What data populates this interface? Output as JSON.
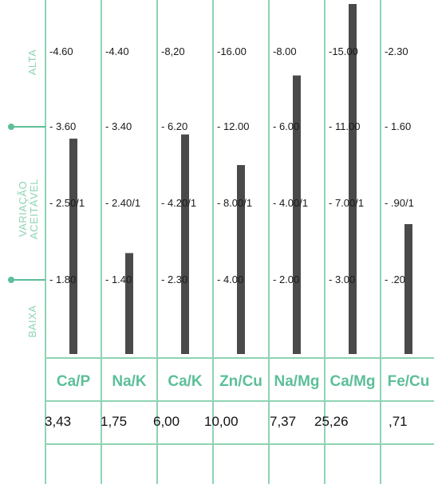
{
  "chart_data": {
    "type": "bar",
    "categories": [
      "Ca/P",
      "Na/K",
      "Ca/K",
      "Zn/Cu",
      "Na/Mg",
      "Ca/Mg",
      "Fe/Cu"
    ],
    "values": [
      3.43,
      1.75,
      6.0,
      10.0,
      7.37,
      25.26,
      0.71
    ],
    "value_labels": [
      "3,43",
      "1,75",
      "6,00",
      "10,00",
      "7,37",
      "25,26",
      ",71"
    ],
    "zones": {
      "high": "ALTA",
      "acceptable_line1": "VARIAÇÃO",
      "acceptable_line2": "ACEITÁVEL",
      "low": "BAIXA"
    },
    "scale_labels": [
      {
        "alta": "-4.60",
        "upper": "- 3.60",
        "ideal": "- 2.50/1",
        "lower": "- 1.80"
      },
      {
        "alta": "-4.40",
        "upper": "- 3.40",
        "ideal": "- 2.40/1",
        "lower": "- 1.40"
      },
      {
        "alta": "-8,20",
        "upper": "- 6.20",
        "ideal": "- 4.20/1",
        "lower": "- 2.30"
      },
      {
        "alta": "-16.00",
        "upper": "- 12.00",
        "ideal": "- 8.00/1",
        "lower": "- 4.00"
      },
      {
        "alta": "-8.00",
        "upper": "- 6.00",
        "ideal": "- 4.00/1",
        "lower": "- 2.00"
      },
      {
        "alta": "-15.00",
        "upper": "- 11.00",
        "ideal": "- 7.00/1",
        "lower": "- 3.00"
      },
      {
        "alta": "-2.30",
        "upper": "- 1.60",
        "ideal": "- .90/1",
        "lower": "- .20"
      }
    ],
    "scale_points": {
      "alta": [
        4.6,
        4.4,
        8.2,
        16.0,
        8.0,
        15.0,
        2.3
      ],
      "upper": [
        3.6,
        3.4,
        6.2,
        12.0,
        6.0,
        11.0,
        1.6
      ],
      "ideal": [
        2.5,
        2.4,
        4.2,
        8.0,
        4.0,
        7.0,
        0.9
      ],
      "lower": [
        1.8,
        1.4,
        2.3,
        4.0,
        2.0,
        3.0,
        0.2
      ]
    },
    "colors": {
      "grid": "#8fd3b3",
      "header": "#5cbf98",
      "bar": "#4a4a4a"
    }
  }
}
